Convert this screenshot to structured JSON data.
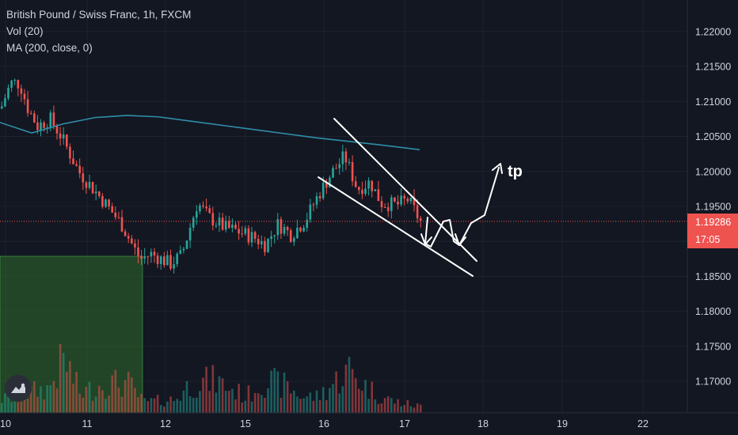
{
  "symbol": {
    "title": "British Pound / Swiss Franc, 1h, FXCM",
    "indicator_vol": "Vol (20)",
    "indicator_ma": "MA (200, close, 0)"
  },
  "price_badge": {
    "price": "1.19286",
    "countdown": "17:05",
    "color": "#ef5350"
  },
  "annotation": {
    "tp_label": "tp"
  },
  "colors": {
    "background": "#131722",
    "up": "#26a69a",
    "down": "#ef5350",
    "ma": "#2e8fa8",
    "zone": "#2e6b2a",
    "drawing": "#ffffff"
  },
  "icons": {
    "logo": "tradingview-logo-icon"
  },
  "chart_data": {
    "type": "candlestick",
    "title": "British Pound / Swiss Franc, 1h, FXCM",
    "y_axis_ticks": [
      "1.22000",
      "1.21500",
      "1.21000",
      "1.20500",
      "1.20000",
      "1.19500",
      "1.19000",
      "1.18500",
      "1.18000",
      "1.17500",
      "1.17000"
    ],
    "x_axis_ticks": [
      "10",
      "11",
      "12",
      "15",
      "16",
      "17",
      "18",
      "19",
      "22"
    ],
    "ylim": [
      1.1655,
      1.2245
    ],
    "last_price": 1.19286,
    "series": [
      {
        "name": "Price",
        "anchors": [
          [
            0,
            1.209
          ],
          [
            8,
            1.2115
          ],
          [
            14,
            1.2128
          ],
          [
            24,
            1.2125
          ],
          [
            34,
            1.209
          ],
          [
            46,
            1.2065
          ],
          [
            62,
            1.2075
          ],
          [
            76,
            1.205
          ],
          [
            98,
            1.2
          ],
          [
            124,
            1.1965
          ],
          [
            152,
            1.1925
          ],
          [
            168,
            1.189
          ],
          [
            176,
            1.1875
          ],
          [
            190,
            1.1882
          ],
          [
            214,
            1.1868
          ],
          [
            228,
            1.188
          ],
          [
            248,
            1.1955
          ],
          [
            262,
            1.1935
          ],
          [
            282,
            1.192
          ],
          [
            298,
            1.1915
          ],
          [
            320,
            1.1905
          ],
          [
            334,
            1.1895
          ],
          [
            350,
            1.1925
          ],
          [
            366,
            1.191
          ],
          [
            384,
            1.193
          ],
          [
            400,
            1.1965
          ],
          [
            416,
            1.1995
          ],
          [
            434,
            1.2022
          ],
          [
            450,
            1.1975
          ],
          [
            466,
            1.1985
          ],
          [
            480,
            1.1955
          ],
          [
            500,
            1.1952
          ],
          [
            514,
            1.196
          ],
          [
            530,
            1.1928
          ]
        ]
      },
      {
        "name": "Vol",
        "anchors": [
          [
            0,
            0.25
          ],
          [
            20,
            0.3
          ],
          [
            40,
            0.4
          ],
          [
            60,
            0.45
          ],
          [
            80,
            1.0
          ],
          [
            100,
            0.35
          ],
          [
            130,
            0.55
          ],
          [
            160,
            0.55
          ],
          [
            180,
            0.2
          ],
          [
            220,
            0.25
          ],
          [
            240,
            0.55
          ],
          [
            270,
            0.6
          ],
          [
            290,
            0.45
          ],
          [
            310,
            0.3
          ],
          [
            330,
            0.6
          ],
          [
            360,
            0.5
          ],
          [
            380,
            0.3
          ],
          [
            400,
            0.3
          ],
          [
            440,
            0.8
          ],
          [
            460,
            0.5
          ],
          [
            480,
            0.3
          ],
          [
            500,
            0.2
          ],
          [
            530,
            0.12
          ]
        ]
      },
      {
        "name": "MA (200, close, 0)",
        "points": [
          [
            0,
            1.207
          ],
          [
            40,
            1.2055
          ],
          [
            80,
            1.2068
          ],
          [
            120,
            1.2077
          ],
          [
            160,
            1.208
          ],
          [
            200,
            1.2078
          ],
          [
            240,
            1.2072
          ],
          [
            280,
            1.2066
          ],
          [
            320,
            1.206
          ],
          [
            360,
            1.2054
          ],
          [
            400,
            1.2048
          ],
          [
            440,
            1.2043
          ],
          [
            480,
            1.2038
          ],
          [
            530,
            1.2031
          ]
        ]
      }
    ],
    "annotations": [
      "tp"
    ]
  }
}
